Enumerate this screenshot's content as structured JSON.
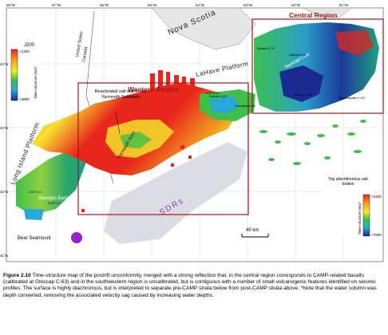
{
  "map": {
    "regions": {
      "western": "Western Region",
      "central": "Central Region"
    },
    "labels": {
      "nova_scotia": "Nova Scotia",
      "lahave_platform": "LaHave Platform",
      "long_island_platform": "Long Island Platform",
      "georges_bank": "Georges Bank",
      "yarmouth_arch": "Yarmouth Arch",
      "naskapi_low": "Naskapi Low",
      "mohican": "Mohican",
      "sdrs": "SDRs",
      "bear_seamount": "Bear Seamount",
      "united_states": "United States",
      "canada": "Canada",
      "salt_wall_note": "Reactivated salt wall in the Yarmouth Subbasin",
      "scale": "40 km"
    },
    "wells": [
      "Mohican I-100",
      "Naskapi N-30",
      "Gloscap C-63",
      "Sachem D-76",
      "Shubenacadie H-100",
      "COST G-2",
      "COST G-1",
      "Montagnais I-94"
    ],
    "lon_ticks_top": [
      "68°W",
      "67°W",
      "66°W",
      "65°W",
      "64°W",
      "63°W",
      "62°W",
      "61°W"
    ],
    "lat_ticks_left": [
      "44°N",
      "43°N",
      "42°N",
      "41°N"
    ],
    "legend_left": {
      "title": "J200",
      "label": "Time-structure (ms)*",
      "min": "<1200",
      "max": ">3800"
    },
    "legend_right": {
      "title": "Top allochthonous salt bodies",
      "label": "Time-structure (ms)*",
      "min": "<2400",
      "max": ">7000"
    },
    "colors": {
      "region_box": "#a01818",
      "sdr_zone": "#d8d8e0",
      "seamount": "#9a1fd0"
    }
  },
  "caption": {
    "figure": "Figure 2.10",
    "text": "Time-structure map of the postrift unconformity, merged with a strong reflection that, in the central region corresponds to CAMP-related basalts (calibrated at Gloscap C-63) and in the southwestern region is uncalibrated, but is contiguous with a number of small volcanogenic features identified on seismic profiles. The surface is highly diachronous, but is interpreted to separate pre-CAMP strata below from post-CAMP strata above. *Note that the water column was depth converted, removing the associated velocity sag caused by increasing water depths."
  }
}
